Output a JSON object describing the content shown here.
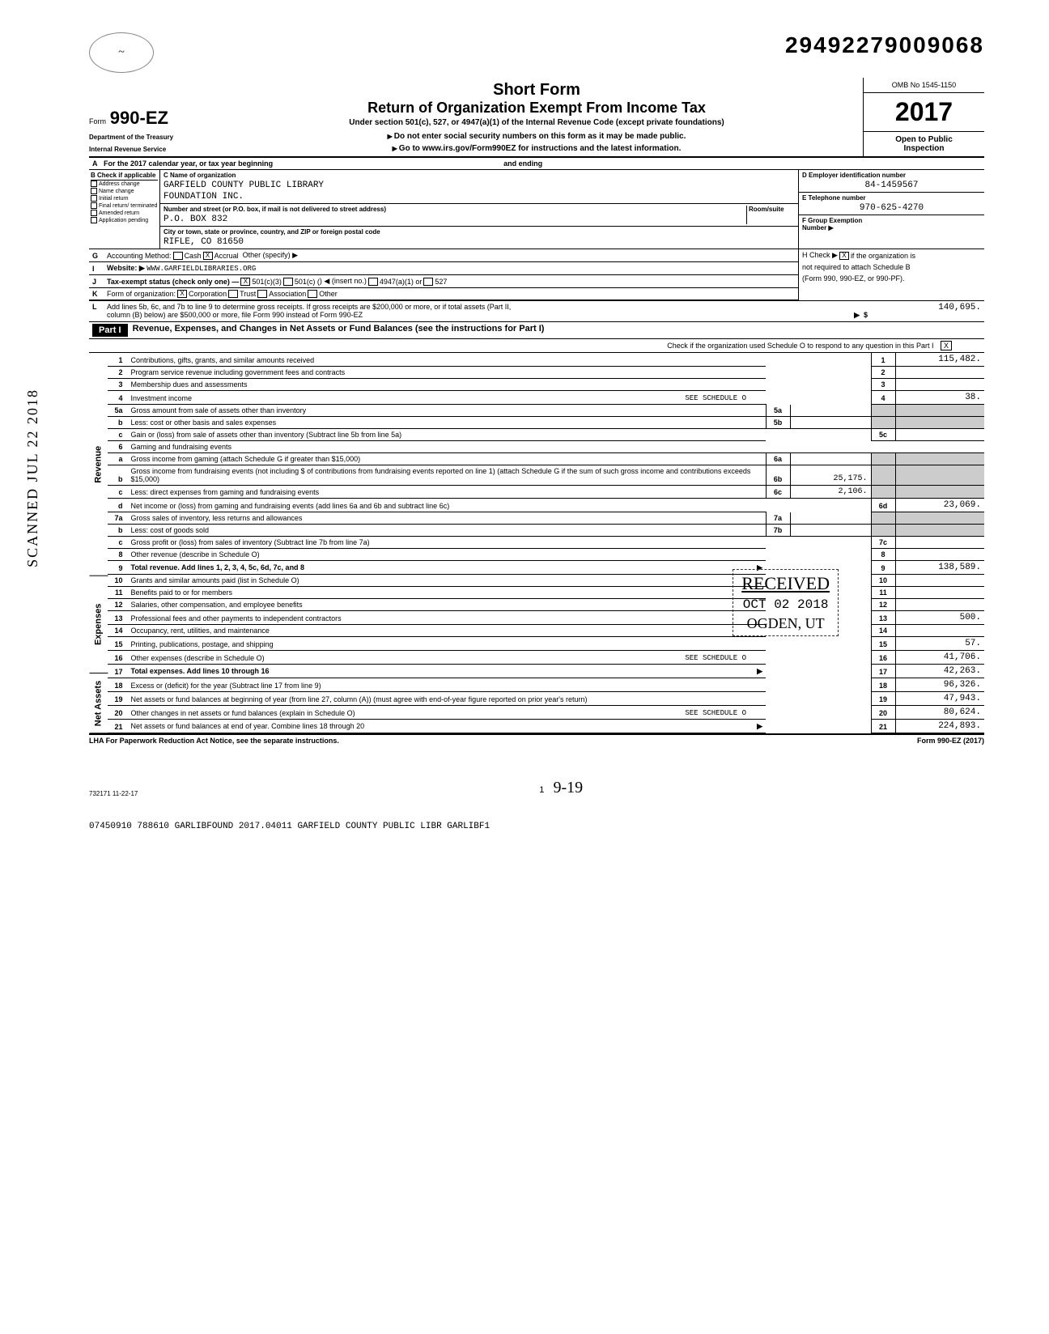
{
  "top_id": "29492279009068",
  "omb": "OMB No  1545-1150",
  "year": "2017",
  "open_public_1": "Open to Public",
  "open_public_2": "Inspection",
  "short_form": "Short Form",
  "return_title": "Return of Organization Exempt From Income Tax",
  "under_section": "Under section 501(c), 527, or 4947(a)(1) of the Internal Revenue Code (except private foundations)",
  "no_ssn": "Do not enter social security numbers on this form as it may be made public.",
  "goto": "Go to www.irs.gov/Form990EZ for instructions and the latest information.",
  "form_prefix": "Form",
  "form_number": "990-EZ",
  "dept1": "Department of the Treasury",
  "dept2": "Internal Revenue Service",
  "row_a": "For the 2017 calendar year, or tax year beginning",
  "row_a_end": "and ending",
  "b_header": "Check if applicable",
  "b_items": [
    "Address change",
    "Name change",
    "Initial return",
    "Final return/ terminated",
    "Amended return",
    "Application pending"
  ],
  "c_label": "C Name of organization",
  "c_name1": "GARFIELD COUNTY PUBLIC LIBRARY",
  "c_name2": "FOUNDATION INC.",
  "c_addr_label": "Number and street (or P.O. box, if mail is not delivered to street address)",
  "c_room": "Room/suite",
  "c_addr": "P.O. BOX 832",
  "c_city_label": "City or town, state or province, country, and ZIP or foreign postal code",
  "c_city": "RIFLE, CO  81650",
  "d_label": "D Employer identification number",
  "d_val": "84-1459567",
  "e_label": "E Telephone number",
  "e_val": "970-625-4270",
  "f_label": "F Group Exemption",
  "f_label2": "Number ▶",
  "g_label": "Accounting Method:",
  "g_cash": "Cash",
  "g_accrual": "Accrual",
  "g_other": "Other (specify) ▶",
  "h_label": "H Check ▶",
  "h_text": "if the organization is",
  "i_label": "Website: ▶",
  "i_val": "WWW.GARFIELDLIBRARIES.ORG",
  "i_right": "not required to attach Schedule B",
  "j_label": "Tax-exempt status (check only one) —",
  "j_501c3": "501(c)(3)",
  "j_501c": "501(c) (",
  "j_insert": ") ◀ (insert no.)",
  "j_4947": "4947(a)(1) or",
  "j_527": "527",
  "j_right": "(Form 990, 990-EZ, or 990-PF).",
  "k_label": "Form of organization:",
  "k_corp": "Corporation",
  "k_trust": "Trust",
  "k_assoc": "Association",
  "k_other": "Other",
  "l_text1": "Add lines 5b, 6c, and 7b to line 9 to determine gross receipts. If gross receipts are $200,000 or more, or if total assets (Part II,",
  "l_text2": "column (B) below) are $500,000 or more, file Form 990 instead of Form 990-EZ",
  "l_amt": "140,695.",
  "part1_hdr": "Part I",
  "part1_title": "Revenue, Expenses, and Changes in Net Assets or Fund Balances (see the instructions for Part I)",
  "part1_sub": "Check if the organization used Schedule O to respond to any question in this Part I",
  "sections": {
    "revenue": "Revenue",
    "expenses": "Expenses",
    "netassets": "Net Assets"
  },
  "lines": [
    {
      "n": "1",
      "d": "Contributions, gifts, grants, and similar amounts received",
      "r": "1",
      "rv": "115,482."
    },
    {
      "n": "2",
      "d": "Program service revenue including government fees and contracts",
      "r": "2",
      "rv": ""
    },
    {
      "n": "3",
      "d": "Membership dues and assessments",
      "r": "3",
      "rv": ""
    },
    {
      "n": "4",
      "d": "Investment income",
      "extra": "SEE SCHEDULE O",
      "r": "4",
      "rv": "38."
    },
    {
      "n": "5a",
      "d": "Gross amount from sale of assets other than inventory",
      "m": "5a",
      "mv": ""
    },
    {
      "n": "b",
      "d": "Less: cost or other basis and sales expenses",
      "m": "5b",
      "mv": ""
    },
    {
      "n": "c",
      "d": "Gain or (loss) from sale of assets other than inventory (Subtract line 5b from line 5a)",
      "r": "5c",
      "rv": ""
    },
    {
      "n": "6",
      "d": "Gaming and fundraising events"
    },
    {
      "n": "a",
      "d": "Gross income from gaming (attach Schedule G if greater than $15,000)",
      "m": "6a",
      "mv": ""
    },
    {
      "n": "b",
      "d": "Gross income from fundraising events (not including $                              of contributions from fundraising events reported on line 1) (attach Schedule G if the sum of such gross income and contributions exceeds $15,000)",
      "m": "6b",
      "mv": "25,175."
    },
    {
      "n": "c",
      "d": "Less: direct expenses from gaming and fundraising events",
      "m": "6c",
      "mv": "2,106."
    },
    {
      "n": "d",
      "d": "Net income or (loss) from gaming and fundraising events (add lines 6a and 6b and subtract line 6c)",
      "r": "6d",
      "rv": "23,069."
    },
    {
      "n": "7a",
      "d": "Gross sales of inventory, less returns and allowances",
      "m": "7a",
      "mv": ""
    },
    {
      "n": "b",
      "d": "Less: cost of goods sold",
      "m": "7b",
      "mv": ""
    },
    {
      "n": "c",
      "d": "Gross profit or (loss) from sales of inventory (Subtract line 7b from line 7a)",
      "r": "7c",
      "rv": ""
    },
    {
      "n": "8",
      "d": "Other revenue (describe in Schedule O)",
      "r": "8",
      "rv": ""
    },
    {
      "n": "9",
      "d": "Total revenue. Add lines 1, 2, 3, 4, 5c, 6d, 7c, and 8",
      "bold": true,
      "arrow": true,
      "r": "9",
      "rv": "138,589."
    },
    {
      "n": "10",
      "d": "Grants and similar amounts paid (list in Schedule O)",
      "r": "10",
      "rv": ""
    },
    {
      "n": "11",
      "d": "Benefits paid to or for members",
      "r": "11",
      "rv": ""
    },
    {
      "n": "12",
      "d": "Salaries, other compensation, and employee benefits",
      "r": "12",
      "rv": ""
    },
    {
      "n": "13",
      "d": "Professional fees and other payments to independent contractors",
      "r": "13",
      "rv": "500."
    },
    {
      "n": "14",
      "d": "Occupancy, rent, utilities, and maintenance",
      "r": "14",
      "rv": ""
    },
    {
      "n": "15",
      "d": "Printing, publications, postage, and shipping",
      "r": "15",
      "rv": "57."
    },
    {
      "n": "16",
      "d": "Other expenses (describe in Schedule O)",
      "extra": "SEE SCHEDULE O",
      "r": "16",
      "rv": "41,706."
    },
    {
      "n": "17",
      "d": "Total expenses. Add lines 10 through 16",
      "bold": true,
      "arrow": true,
      "r": "17",
      "rv": "42,263."
    },
    {
      "n": "18",
      "d": "Excess or (deficit) for the year (Subtract line 17 from line 9)",
      "r": "18",
      "rv": "96,326."
    },
    {
      "n": "19",
      "d": "Net assets or fund balances at beginning of year (from line 27, column (A)) (must agree with end-of-year figure reported on prior year's return)",
      "r": "19",
      "rv": "47,943."
    },
    {
      "n": "20",
      "d": "Other changes in net assets or fund balances (explain in Schedule O)",
      "extra": "SEE SCHEDULE O",
      "r": "20",
      "rv": "80,624."
    },
    {
      "n": "21",
      "d": "Net assets or fund balances at end of year. Combine lines 18 through 20",
      "arrow": true,
      "r": "21",
      "rv": "224,893."
    }
  ],
  "lha": "LHA   For Paperwork Reduction Act Notice, see the separate instructions.",
  "form_footer": "Form 990-EZ (2017)",
  "rev_code": "732171  11-22-17",
  "page_num": "1",
  "handwritten": "9-19",
  "bottom": "07450910 788610 GARLIBFOUND    2017.04011 GARFIELD COUNTY PUBLIC LIBR GARLIBF1",
  "received": "RECEIVED",
  "received_date": "OCT 02 2018",
  "received_loc": "OGDEN, UT",
  "scanned": "SCANNED JUL 22 2018"
}
